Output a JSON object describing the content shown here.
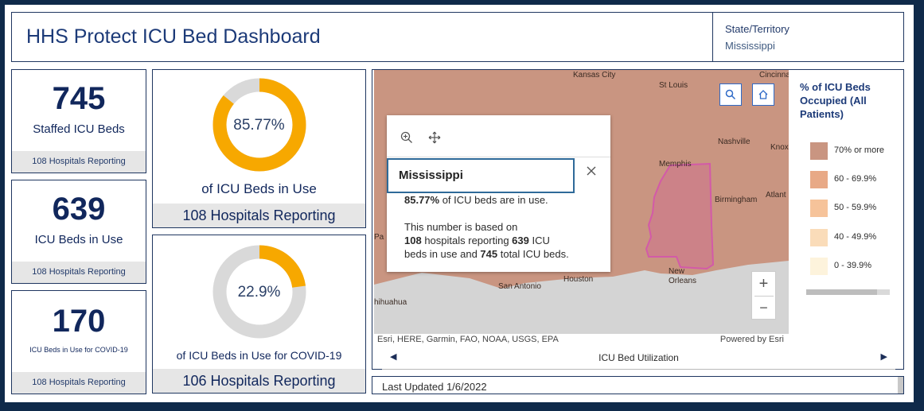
{
  "title": "HHS Protect ICU Bed Dashboard",
  "state": {
    "label": "State/Territory",
    "value": "Mississippi"
  },
  "stats": [
    {
      "value": "745",
      "label": "Staffed ICU Beds",
      "footer": "108 Hospitals Reporting"
    },
    {
      "value": "639",
      "label": "ICU Beds in Use",
      "footer": "108 Hospitals Reporting"
    },
    {
      "value": "170",
      "label": "ICU Beds in Use for COVID-19",
      "footer": "108 Hospitals Reporting"
    }
  ],
  "donuts": [
    {
      "pct_text": "85.77%",
      "fraction": 0.8577,
      "label": "of ICU Beds in Use",
      "footer": "108 Hospitals Reporting"
    },
    {
      "pct_text": "22.9%",
      "fraction": 0.229,
      "label": "of ICU Beds in Use for COVID-19",
      "footer": "106 Hospitals Reporting"
    }
  ],
  "colors": {
    "accent": "#f7a800",
    "track": "#d9d9d9",
    "navy": "#11275c",
    "map": "#c99581"
  },
  "map": {
    "cities": [
      "Kansas City",
      "St Louis",
      "Cincinna",
      "Nashville",
      "Knox",
      "Memphis",
      "Birmingham",
      "Atlant",
      "Houston",
      "New Orleans",
      "San Antonio",
      "hihuahua",
      "Pa"
    ],
    "attribution": "Esri, HERE, Garmin, FAO, NOAA, USGS, EPA",
    "powered": "Powered by Esri",
    "zoom_in": "+",
    "zoom_out": "−"
  },
  "popup": {
    "title": "Mississippi",
    "line1_bold": "85.77%",
    "line1_rest": " of ICU beds are in use.",
    "line2": "This number is based on",
    "line3_bold1": "108",
    "line3_mid": " hospitals reporting ",
    "line3_bold2": "639",
    "line3_rest": " ICU",
    "line4_pre": "beds in use and ",
    "line4_bold": "745",
    "line4_rest": " total ICU beds."
  },
  "legend": {
    "title": "% of ICU Beds Occupied (All Patients)",
    "items": [
      {
        "label": "70% or more",
        "color": "#c99581"
      },
      {
        "label": "60 - 69.9%",
        "color": "#e8a986"
      },
      {
        "label": "50 - 59.9%",
        "color": "#f6c39a"
      },
      {
        "label": "40 - 49.9%",
        "color": "#fadcb9"
      },
      {
        "label": "0 - 39.9%",
        "color": "#fdf3dc"
      }
    ]
  },
  "nav": {
    "label": "ICU Bed Utilization",
    "prev": "◀",
    "next": "▶"
  },
  "updated": "Last Updated 1/6/2022"
}
